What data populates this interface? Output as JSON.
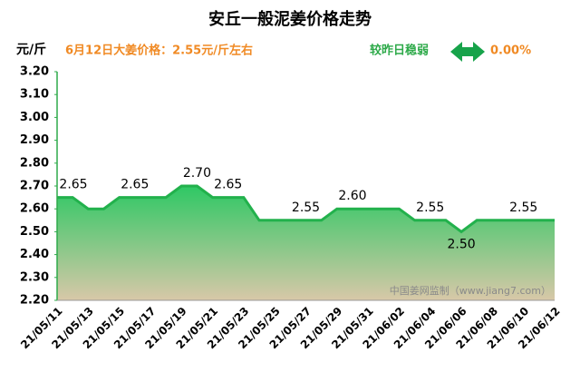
{
  "chart_data": {
    "type": "area",
    "title": "安丘一般泥姜价格走势",
    "y_label": "元/斤",
    "subtitle": "6月12日大姜价格：2.55元/斤左右",
    "trend": "较昨日稳弱",
    "change": "0.00%",
    "watermark": "中国姜网监制（www.jiang7.com）",
    "color": "#22b14c",
    "categories": [
      "21/05/11",
      null,
      "21/05/13",
      null,
      "21/05/15",
      null,
      "21/05/17",
      null,
      "21/05/19",
      null,
      "21/05/21",
      null,
      "21/05/23",
      null,
      "21/05/25",
      null,
      "21/05/27",
      null,
      "21/05/29",
      null,
      "21/05/31",
      null,
      "21/06/02",
      null,
      "21/06/04",
      null,
      "21/06/06",
      null,
      "21/06/08",
      null,
      "21/06/10",
      null,
      "21/06/12"
    ],
    "values": [
      2.65,
      2.65,
      2.6,
      2.6,
      2.65,
      2.65,
      2.65,
      2.65,
      2.7,
      2.7,
      2.65,
      2.65,
      2.65,
      2.55,
      2.55,
      2.55,
      2.55,
      2.55,
      2.6,
      2.6,
      2.6,
      2.6,
      2.6,
      2.55,
      2.55,
      2.55,
      2.5,
      2.55,
      2.55,
      2.55,
      2.55,
      2.55,
      2.55
    ],
    "value_labels": [
      "2.65",
      null,
      null,
      null,
      null,
      "2.65",
      null,
      null,
      null,
      "2.70",
      null,
      "2.65",
      null,
      null,
      null,
      null,
      "2.55",
      null,
      null,
      "2.60",
      null,
      null,
      null,
      null,
      "2.55",
      null,
      "2.50",
      null,
      null,
      null,
      "2.55",
      null,
      null
    ],
    "ylim": [
      2.2,
      3.2
    ],
    "yticks": [
      {
        "value": 2.2,
        "label": "2.20"
      },
      {
        "value": 2.3,
        "label": "2.30"
      },
      {
        "value": 2.4,
        "label": "2.40"
      },
      {
        "value": 2.5,
        "label": "2.50"
      },
      {
        "value": 2.6,
        "label": "2.60"
      },
      {
        "value": 2.7,
        "label": "2.70"
      },
      {
        "value": 2.8,
        "label": "2.80"
      },
      {
        "value": 2.9,
        "label": "2.90"
      },
      {
        "value": 3.0,
        "label": "3.00"
      },
      {
        "value": 3.1,
        "label": "3.10"
      },
      {
        "value": 3.2,
        "label": "3.20"
      }
    ]
  }
}
